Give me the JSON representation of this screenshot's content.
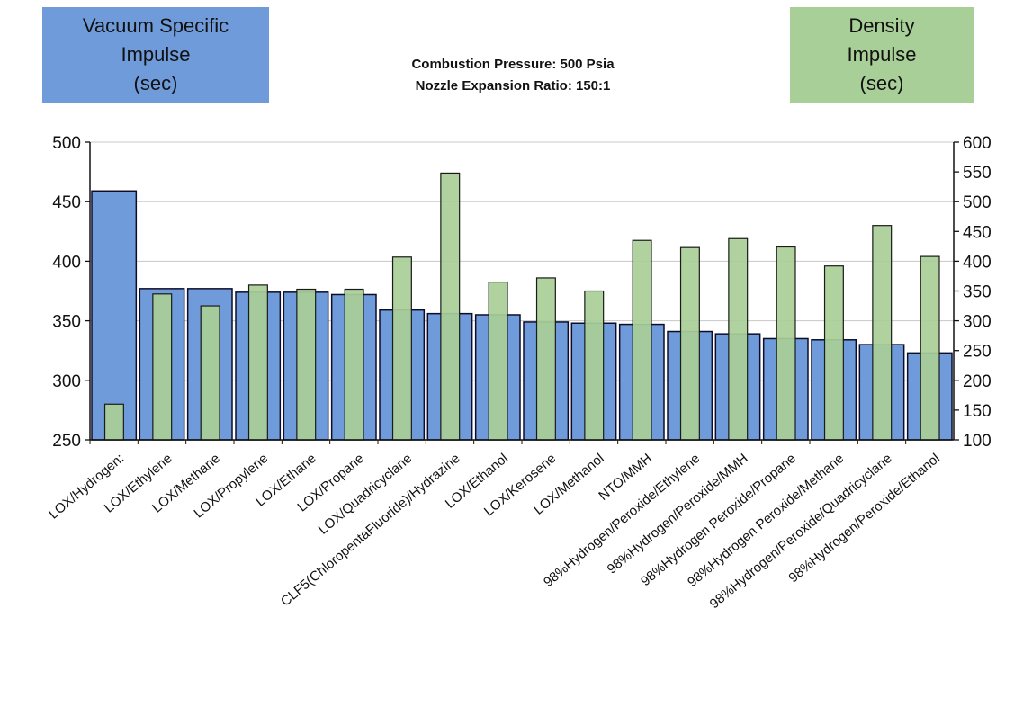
{
  "legend": {
    "left_lines": [
      "Vacuum Specific",
      "Impulse",
      "(sec)"
    ],
    "right_lines": [
      "Density",
      "Impulse",
      "(sec)"
    ],
    "left_color": "#6f9bdb",
    "right_color": "#a9cf98"
  },
  "conditions": {
    "line1": "Combustion Pressure: 500 Psia",
    "line2": "Nozzle Expansion Ratio: 150:1"
  },
  "chart_data": {
    "type": "bar",
    "categories": [
      "LOX/Hydrogen:",
      "LOX/Ethylene",
      "LOX/Methane",
      "LOX/Propylene",
      "LOX/Ethane",
      "LOX/Propane",
      "LOX/Quadricyclane",
      "CLF5(ChloropentaFluoride)/Hydrazine",
      "LOX/Ethanol",
      "LOX/Kerosene",
      "LOX/Methanol",
      "NTO/MMH",
      "98%Hydrogen/Peroxide/Ethylene",
      "98%Hydrogen/Peroxide/MMH",
      "98%Hydrogen Peroxide/Propane",
      "98%Hydrogen Peroxide/Methane",
      "98%Hydrogen/Peroxide/Quadricyclane",
      "98%Hydrogen/Peroxide/Ethanol"
    ],
    "series": [
      {
        "axis": "left",
        "color": "#6f9bdb",
        "values": [
          459,
          377,
          377,
          374,
          374,
          372,
          359,
          356,
          355,
          349,
          348,
          347,
          341,
          339,
          335,
          334,
          330,
          323
        ]
      },
      {
        "axis": "right",
        "color": "#a9cf98",
        "values": [
          160,
          345,
          325,
          360,
          353,
          353,
          407,
          548,
          365,
          372,
          350,
          435,
          423,
          438,
          424,
          392,
          460,
          408
        ]
      }
    ],
    "y_left": {
      "ylim": [
        250,
        500
      ],
      "ticks": [
        "250",
        "300",
        "350",
        "400",
        "450",
        "500"
      ]
    },
    "y_right": {
      "ylim": [
        100,
        600
      ],
      "ticks": [
        "100",
        "150",
        "200",
        "250",
        "300",
        "350",
        "400",
        "450",
        "500",
        "550",
        "600"
      ]
    },
    "grid": true
  }
}
